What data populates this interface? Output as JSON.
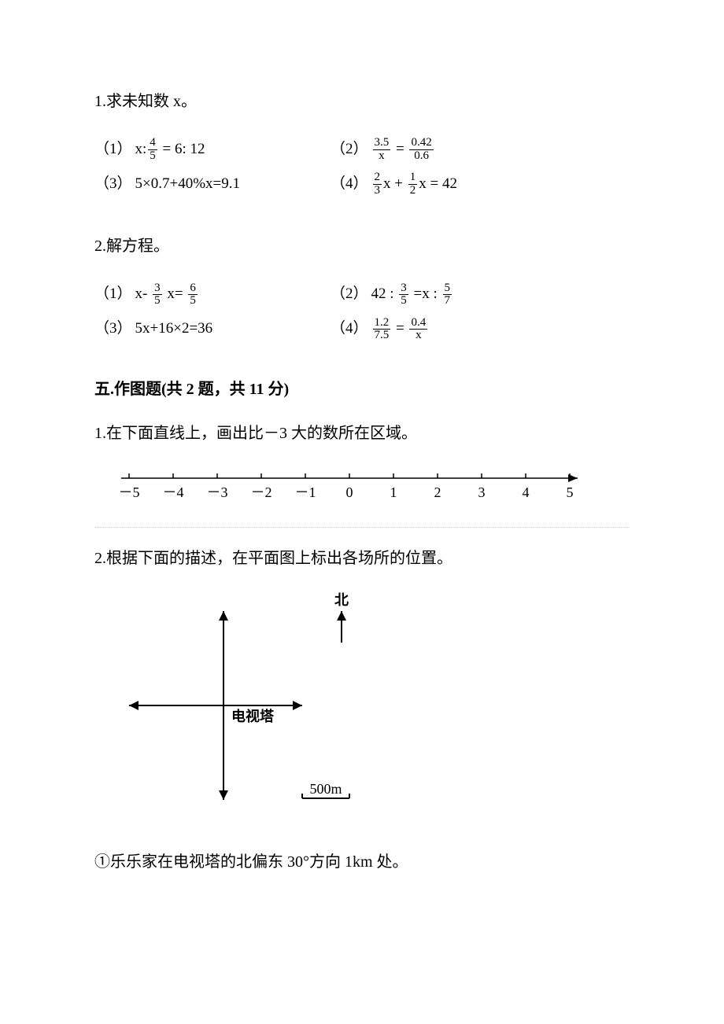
{
  "p1": {
    "heading": "1.求未知数 x。",
    "items": [
      {
        "label": "（1）",
        "prefix": "x:",
        "frac1_n": "4",
        "frac1_d": "5",
        "tail": " = 6: 12"
      },
      {
        "label": "（2）",
        "frac1_n": "3.5",
        "frac1_d": "x",
        "mid": " = ",
        "frac2_n": "0.42",
        "frac2_d": "0.6"
      },
      {
        "label": "（3）",
        "plain": "5×0.7+40%x=9.1"
      },
      {
        "label": "（4）",
        "frac1_n": "2",
        "frac1_d": "3",
        "mid1": "x + ",
        "frac2_n": "1",
        "frac2_d": "2",
        "tail": "x = 42"
      }
    ]
  },
  "p2": {
    "heading": "2.解方程。",
    "items": [
      {
        "label": "（1）",
        "prefix": "x- ",
        "frac1_n": "3",
        "frac1_d": "5",
        "mid": " x= ",
        "frac2_n": "6",
        "frac2_d": "5"
      },
      {
        "label": "（2）",
        "prefix": "42 : ",
        "frac1_n": "3",
        "frac1_d": "5",
        "mid": " =x : ",
        "frac2_n": "5",
        "frac2_d": "7"
      },
      {
        "label": "（3）",
        "plain": "5x+16×2=36"
      },
      {
        "label": "（4）",
        "frac1_n": "1.2",
        "frac1_d": "7.5",
        "mid": " = ",
        "frac2_n": "0.4",
        "frac2_d": "x"
      }
    ]
  },
  "section5": {
    "title": "五.作图题(共 2 题，共 11 分)",
    "q1": "1.在下面直线上，画出比－3 大的数所在区域。",
    "number_line": {
      "labels": [
        "－5",
        "－4",
        "－3",
        "－2",
        "－1",
        "0",
        "1",
        "2",
        "3",
        "4",
        "5"
      ],
      "tick_count": 11,
      "stroke": "#000000",
      "label_fontsize": 18
    },
    "q2": "2.根据下面的描述，在平面图上标出各场所的位置。",
    "compass": {
      "north_label": "北",
      "center_label": "电视塔",
      "scale_text": "500m",
      "stroke": "#000000"
    },
    "sub1": "①乐乐家在电视塔的北偏东 30°方向 1km 处。"
  },
  "style": {
    "text_color": "#000000",
    "bg_color": "#ffffff",
    "body_fontsize": 20
  }
}
